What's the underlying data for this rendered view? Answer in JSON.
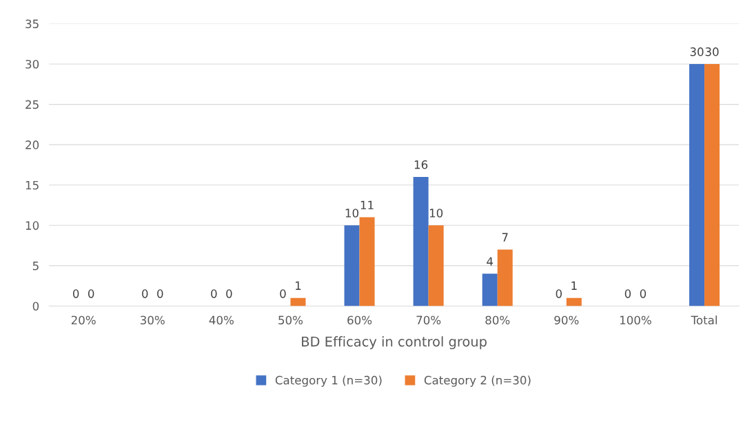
{
  "chart_data": {
    "type": "bar",
    "xlabel": "BD Efficacy in control group",
    "categories": [
      "20%",
      "30%",
      "40%",
      "50%",
      "60%",
      "70%",
      "80%",
      "90%",
      "100%",
      "Total"
    ],
    "series": [
      {
        "name": "Category 1 (n=30)",
        "color": "#4472c4",
        "values": [
          0,
          0,
          0,
          0,
          10,
          16,
          4,
          0,
          0,
          30
        ]
      },
      {
        "name": "Category 2 (n=30)",
        "color": "#ed7d31",
        "values": [
          0,
          0,
          0,
          1,
          11,
          10,
          7,
          1,
          0,
          30
        ]
      }
    ],
    "ylim": [
      0,
      35
    ],
    "yticks": [
      0,
      5,
      10,
      15,
      20,
      25,
      30,
      35
    ],
    "grid": "y",
    "legend": "bottom",
    "data_labels": true
  }
}
